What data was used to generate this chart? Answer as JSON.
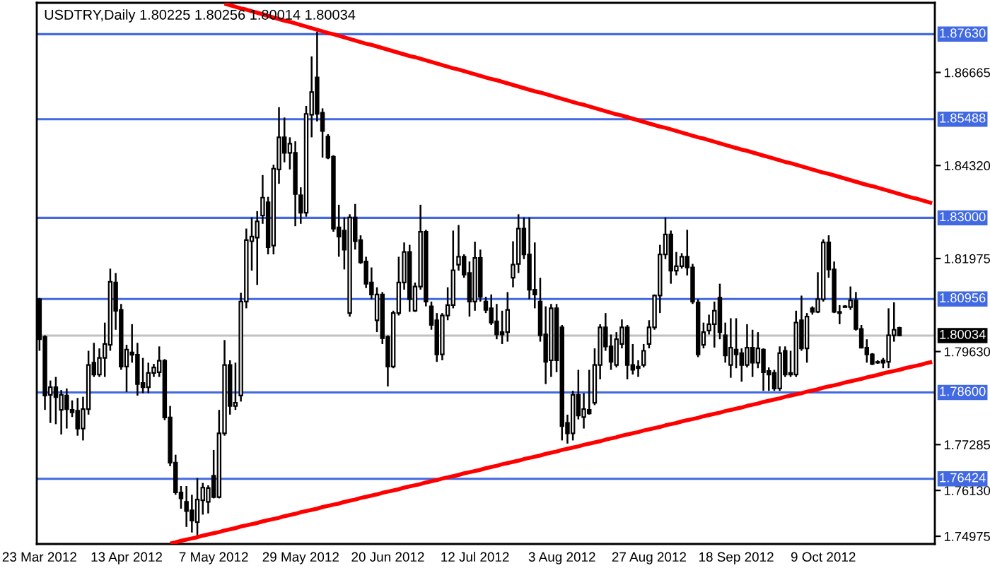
{
  "chart_data": {
    "type": "candlestick",
    "title": "USDTRY,Daily 1.80225 1.80256 1.80014 1.80034",
    "categories": [
      "23 Mar 2012",
      null,
      null,
      null,
      null,
      null,
      null,
      null,
      null,
      null,
      null,
      null,
      null,
      null,
      null,
      null,
      "13 Apr 2012",
      null,
      null,
      null,
      null,
      null,
      null,
      null,
      null,
      null,
      null,
      null,
      null,
      null,
      null,
      null,
      "7 May 2012",
      null,
      null,
      null,
      null,
      null,
      null,
      null,
      null,
      null,
      null,
      null,
      null,
      null,
      null,
      null,
      "29 May 2012",
      null,
      null,
      null,
      null,
      null,
      null,
      null,
      null,
      null,
      null,
      null,
      null,
      null,
      null,
      null,
      "20 Jun 2012",
      null,
      null,
      null,
      null,
      null,
      null,
      null,
      null,
      null,
      null,
      null,
      null,
      null,
      null,
      null,
      "12 Jul 2012",
      null,
      null,
      null,
      null,
      null,
      null,
      null,
      null,
      null,
      null,
      null,
      null,
      null,
      null,
      null,
      "3 Aug 2012",
      null,
      null,
      null,
      null,
      null,
      null,
      null,
      null,
      null,
      null,
      null,
      null,
      null,
      null,
      null,
      "27 Aug 2012",
      null,
      null,
      null,
      null,
      null,
      null,
      null,
      null,
      null,
      null,
      null,
      null,
      null,
      null,
      null,
      "18 Sep 2012",
      null,
      null,
      null,
      null,
      null,
      null,
      null,
      null,
      null,
      null,
      null,
      null,
      null,
      null,
      null,
      "9 Oct 2012",
      null,
      null,
      null,
      null,
      null,
      null,
      null,
      null,
      null,
      null,
      null,
      null,
      null,
      null,
      null,
      null,
      null,
      null,
      null,
      null
    ],
    "ohlc": [
      [
        1.8095,
        1.8098,
        1.7965,
        1.7994
      ],
      [
        1.8,
        1.8004,
        1.7816,
        1.7852
      ],
      [
        1.7854,
        1.789,
        1.7783,
        1.7873
      ],
      [
        1.7873,
        1.7899,
        1.778,
        1.7848
      ],
      [
        1.7816,
        1.7866,
        1.7754,
        1.7854
      ],
      [
        1.7852,
        1.787,
        1.7769,
        1.7818
      ],
      [
        1.7816,
        1.784,
        1.7798,
        1.781
      ],
      [
        1.7814,
        1.7846,
        1.7751,
        1.7769
      ],
      [
        1.7769,
        1.7849,
        1.7739,
        1.7818
      ],
      [
        1.7818,
        1.7965,
        1.7804,
        1.7929
      ],
      [
        1.7935,
        1.7985,
        1.7899,
        1.7905
      ],
      [
        1.7905,
        1.7971,
        1.7899,
        1.7947
      ],
      [
        1.7947,
        1.8036,
        1.7899,
        1.7982
      ],
      [
        1.798,
        1.8172,
        1.7965,
        1.8139
      ],
      [
        1.8137,
        1.8161,
        1.8018,
        1.8066
      ],
      [
        1.8068,
        1.8083,
        1.7917,
        1.7925
      ],
      [
        1.7925,
        1.798,
        1.7861,
        1.7968
      ],
      [
        1.7961,
        1.8032,
        1.7935,
        1.7955
      ],
      [
        1.7955,
        1.7985,
        1.7852,
        1.7881
      ],
      [
        1.7884,
        1.7947,
        1.7858,
        1.7873
      ],
      [
        1.7873,
        1.7935,
        1.7858,
        1.7909
      ],
      [
        1.7909,
        1.7932,
        1.7899,
        1.7923
      ],
      [
        1.7911,
        1.7976,
        1.7899,
        1.794
      ],
      [
        1.794,
        1.7944,
        1.779,
        1.7797
      ],
      [
        1.7797,
        1.7826,
        1.7674,
        1.7683
      ],
      [
        1.7683,
        1.7703,
        1.7602,
        1.7608
      ],
      [
        1.7608,
        1.7624,
        1.7567,
        1.7593
      ],
      [
        1.7584,
        1.7624,
        1.7521,
        1.7561
      ],
      [
        1.7563,
        1.7602,
        1.7507,
        1.7537
      ],
      [
        1.7533,
        1.7644,
        1.7495,
        1.759
      ],
      [
        1.7588,
        1.7632,
        1.7552,
        1.762
      ],
      [
        1.7584,
        1.7626,
        1.7555,
        1.7619
      ],
      [
        1.765,
        1.7715,
        1.7593,
        1.7596
      ],
      [
        1.7596,
        1.7816,
        1.7593,
        1.7757
      ],
      [
        1.7757,
        1.7992,
        1.7751,
        1.7929
      ],
      [
        1.7929,
        1.7941,
        1.7804,
        1.7826
      ],
      [
        1.7826,
        1.7935,
        1.7816,
        1.7834
      ],
      [
        1.7852,
        1.8111,
        1.7837,
        1.8089
      ],
      [
        1.8089,
        1.8273,
        1.8072,
        1.8244
      ],
      [
        1.8241,
        1.8301,
        1.8167,
        1.8253
      ],
      [
        1.825,
        1.8317,
        1.8131,
        1.8291
      ],
      [
        1.8306,
        1.8408,
        1.8285,
        1.8351
      ],
      [
        1.8339,
        1.8353,
        1.8208,
        1.8226
      ],
      [
        1.823,
        1.8434,
        1.8208,
        1.8424
      ],
      [
        1.8422,
        1.8579,
        1.8386,
        1.8503
      ],
      [
        1.8503,
        1.8553,
        1.844,
        1.8464
      ],
      [
        1.8464,
        1.8503,
        1.8422,
        1.8487
      ],
      [
        1.8464,
        1.8493,
        1.8279,
        1.836
      ],
      [
        1.8357,
        1.8377,
        1.8285,
        1.8313
      ],
      [
        1.8313,
        1.8582,
        1.8303,
        1.8562
      ],
      [
        1.856,
        1.8707,
        1.8503,
        1.8617
      ],
      [
        1.8654,
        1.8769,
        1.8543,
        1.8562
      ],
      [
        1.8565,
        1.8576,
        1.8452,
        1.8519
      ],
      [
        1.8505,
        1.8511,
        1.8448,
        1.8452
      ],
      [
        1.8454,
        1.8458,
        1.8265,
        1.8273
      ],
      [
        1.8276,
        1.8333,
        1.8202,
        1.8253
      ],
      [
        1.8268,
        1.8301,
        1.817,
        1.822
      ],
      [
        1.806,
        1.8309,
        1.8051,
        1.8301
      ],
      [
        1.8301,
        1.8335,
        1.822,
        1.8241
      ],
      [
        1.8244,
        1.8256,
        1.8184,
        1.8188
      ],
      [
        1.819,
        1.8202,
        1.8123,
        1.8134
      ],
      [
        1.8137,
        1.8175,
        1.8095,
        1.8107
      ],
      [
        1.8042,
        1.8125,
        1.8012,
        1.8107
      ],
      [
        1.8107,
        1.8113,
        1.7982,
        1.7997
      ],
      [
        1.8,
        1.8004,
        1.7875,
        1.7925
      ],
      [
        1.7925,
        1.8066,
        1.7921,
        1.806
      ],
      [
        1.806,
        1.8202,
        1.8054,
        1.8137
      ],
      [
        1.8137,
        1.8238,
        1.8119,
        1.8214
      ],
      [
        1.8214,
        1.8232,
        1.8063,
        1.8095
      ],
      [
        1.8066,
        1.8137,
        1.8063,
        1.8127
      ],
      [
        1.8127,
        1.8333,
        1.8119,
        1.8265
      ],
      [
        1.8265,
        1.827,
        1.8077,
        1.8089
      ],
      [
        1.8077,
        1.8089,
        1.8018,
        1.803
      ],
      [
        1.8042,
        1.806,
        1.7937,
        1.7956
      ],
      [
        1.7956,
        1.806,
        1.7941,
        1.8054
      ],
      [
        1.8054,
        1.8125,
        1.8042,
        1.808
      ],
      [
        1.808,
        1.8268,
        1.8072,
        1.8168
      ],
      [
        1.8182,
        1.8282,
        1.8167,
        1.8202
      ],
      [
        1.8202,
        1.8208,
        1.8149,
        1.8157
      ],
      [
        1.8161,
        1.819,
        1.8051,
        1.8089
      ],
      [
        1.8089,
        1.824,
        1.8066,
        1.8199
      ],
      [
        1.8199,
        1.822,
        1.8089,
        1.8101
      ],
      [
        1.8089,
        1.8101,
        1.806,
        1.8068
      ],
      [
        1.8072,
        1.8107,
        1.803,
        1.8036
      ],
      [
        1.8039,
        1.8083,
        1.7994,
        1.8006
      ],
      [
        1.8012,
        1.8066,
        1.7982,
        1.8006
      ],
      [
        1.8012,
        1.8113,
        1.7988,
        1.8068
      ],
      [
        1.8149,
        1.8241,
        1.8125,
        1.8182
      ],
      [
        1.8184,
        1.8309,
        1.8161,
        1.8273
      ],
      [
        1.8273,
        1.8301,
        1.8196,
        1.8208
      ],
      [
        1.8208,
        1.8301,
        1.8095,
        1.8119
      ],
      [
        1.8119,
        1.8238,
        1.8072,
        1.8107
      ],
      [
        1.8089,
        1.8149,
        1.7988,
        1.8004
      ],
      [
        1.8006,
        1.8077,
        1.7881,
        1.7937
      ],
      [
        1.7941,
        1.8083,
        1.7899,
        1.8072
      ],
      [
        1.8072,
        1.8083,
        1.7911,
        1.7941
      ],
      [
        1.8024,
        1.803,
        1.7739,
        1.7775
      ],
      [
        1.7783,
        1.7804,
        1.7731,
        1.7757
      ],
      [
        1.7757,
        1.7864,
        1.7739,
        1.7854
      ],
      [
        1.7854,
        1.7917,
        1.7792,
        1.7802
      ],
      [
        1.7798,
        1.7858,
        1.7769,
        1.7818
      ],
      [
        1.7816,
        1.7917,
        1.7804,
        1.7807
      ],
      [
        1.7834,
        1.7971,
        1.7828,
        1.7929
      ],
      [
        1.7929,
        1.8032,
        1.7893,
        1.8024
      ],
      [
        1.8024,
        1.806,
        1.7965,
        1.7976
      ],
      [
        1.7976,
        1.8006,
        1.7917,
        1.7937
      ],
      [
        1.7929,
        1.8012,
        1.7923,
        1.7994
      ],
      [
        1.7982,
        1.8044,
        1.7971,
        1.8024
      ],
      [
        1.8024,
        1.803,
        1.7893,
        1.7929
      ],
      [
        1.7929,
        1.7982,
        1.7905,
        1.7917
      ],
      [
        1.7925,
        1.7941,
        1.7899,
        1.7921
      ],
      [
        1.7929,
        1.7982,
        1.7923,
        1.7965
      ],
      [
        1.7982,
        1.8042,
        1.7971,
        1.8024
      ],
      [
        1.8024,
        1.8107,
        1.8018,
        1.8104
      ],
      [
        1.8104,
        1.8232,
        1.806,
        1.8208
      ],
      [
        1.8208,
        1.8301,
        1.8196,
        1.8258
      ],
      [
        1.8258,
        1.8268,
        1.8134,
        1.8167
      ],
      [
        1.8167,
        1.8214,
        1.8155,
        1.8178
      ],
      [
        1.8178,
        1.8211,
        1.8172,
        1.8202
      ],
      [
        1.8202,
        1.827,
        1.8155,
        1.8175
      ],
      [
        1.8175,
        1.8184,
        1.8083,
        1.8089
      ],
      [
        1.8087,
        1.8095,
        1.7949,
        1.7956
      ],
      [
        1.798,
        1.8036,
        1.7971,
        1.8012
      ],
      [
        1.8016,
        1.8056,
        1.8006,
        1.8032
      ],
      [
        1.8032,
        1.8089,
        1.7973,
        1.8066
      ],
      [
        1.8099,
        1.8134,
        1.7994,
        1.8012
      ],
      [
        1.8004,
        1.8036,
        1.7935,
        1.7953
      ],
      [
        1.7929,
        1.8047,
        1.7897,
        1.7973
      ],
      [
        1.7968,
        1.8047,
        1.7921,
        1.7956
      ],
      [
        1.7959,
        1.7971,
        1.7887,
        1.7929
      ],
      [
        1.7929,
        1.8032,
        1.7923,
        1.7973
      ],
      [
        1.7973,
        1.8018,
        1.7899,
        1.7935
      ],
      [
        1.7935,
        1.8012,
        1.7921,
        1.7971
      ],
      [
        1.7968,
        1.7971,
        1.7864,
        1.7911
      ],
      [
        1.7914,
        1.7923,
        1.7864,
        1.7905
      ],
      [
        1.7909,
        1.7917,
        1.7864,
        1.787
      ],
      [
        1.787,
        1.7976,
        1.7864,
        1.7959
      ],
      [
        1.7965,
        1.7976,
        1.7899,
        1.7905
      ],
      [
        1.7909,
        1.7965,
        1.7899,
        1.7905
      ],
      [
        1.7905,
        1.8066,
        1.7899,
        1.8036
      ],
      [
        1.8042,
        1.8104,
        1.7965,
        1.7971
      ],
      [
        1.7971,
        1.806,
        1.7935,
        1.8051
      ],
      [
        1.8072,
        1.8077,
        1.8056,
        1.8063
      ],
      [
        1.8063,
        1.8163,
        1.806,
        1.8095
      ],
      [
        1.8095,
        1.8246,
        1.8089,
        1.8238
      ],
      [
        1.8238,
        1.8256,
        1.8149,
        1.817
      ],
      [
        1.817,
        1.819,
        1.806,
        1.8063
      ],
      [
        1.8063,
        1.808,
        1.8032,
        1.806
      ],
      [
        1.8077,
        1.808,
        1.8075,
        1.8075
      ],
      [
        1.8075,
        1.8127,
        1.8068,
        1.8092
      ],
      [
        1.8092,
        1.8113,
        1.8016,
        1.802
      ],
      [
        1.802,
        1.803,
        1.7971,
        1.7973
      ],
      [
        1.7973,
        1.7994,
        1.7935,
        1.7956
      ],
      [
        1.7956,
        1.7959,
        1.7929,
        1.7932
      ],
      [
        1.7937,
        1.7941,
        1.7932,
        1.7935
      ],
      [
        1.7941,
        1.7947,
        1.7921,
        1.7935
      ],
      [
        1.7937,
        1.8072,
        1.7921,
        1.8004
      ],
      [
        1.8004,
        1.8087,
        1.7988,
        1.8018
      ],
      [
        1.80225,
        1.80256,
        1.80014,
        1.80034
      ],
      null,
      null,
      null,
      null,
      null,
      null
    ],
    "series": [
      {
        "type": "line",
        "color": "#ff0000",
        "values": [
          null,
          null,
          null,
          null,
          null,
          null,
          null,
          null,
          null,
          null,
          null,
          null,
          null,
          null,
          null,
          null,
          null,
          null,
          null,
          null,
          null,
          null,
          null,
          null,
          null,
          null,
          null,
          null,
          null,
          null,
          null,
          null,
          null,
          null,
          1.884,
          1.8836,
          1.8832,
          1.8828,
          1.8825,
          1.8821,
          1.8817,
          1.8813,
          1.8809,
          1.8805,
          1.8801,
          1.8797,
          1.8794,
          1.879,
          1.8786,
          1.8782,
          1.8778,
          1.8774,
          1.877,
          1.8766,
          1.8763,
          1.8759,
          1.8755,
          1.8751,
          1.8747,
          1.8743,
          1.8739,
          1.8736,
          1.8732,
          1.8728,
          1.8724,
          1.872,
          1.8716,
          1.8712,
          1.8708,
          1.8705,
          1.8701,
          1.8697,
          1.8693,
          1.8689,
          1.8685,
          1.8681,
          1.8677,
          1.8674,
          1.867,
          1.8666,
          1.8662,
          1.8658,
          1.8654,
          1.865,
          1.8647,
          1.8643,
          1.8639,
          1.8635,
          1.8631,
          1.8627,
          1.8623,
          1.8619,
          1.8616,
          1.8612,
          1.8608,
          1.8604,
          1.86,
          1.8596,
          1.8592,
          1.8588,
          1.8585,
          1.8581,
          1.8577,
          1.8573,
          1.8569,
          1.8565,
          1.8561,
          1.8558,
          1.8554,
          1.855,
          1.8546,
          1.8542,
          1.8538,
          1.8534,
          1.853,
          1.8527,
          1.8523,
          1.8519,
          1.8515,
          1.8511,
          1.8507,
          1.8503,
          1.85,
          1.8496,
          1.8492,
          1.8488,
          1.8484,
          1.848,
          1.8476,
          1.8472,
          1.8469,
          1.8465,
          1.8461,
          1.8457,
          1.8453,
          1.8449,
          1.8445,
          1.8441,
          1.8438,
          1.8434,
          1.843,
          1.8426,
          1.8422,
          1.8418,
          1.8414,
          1.8411,
          1.8407,
          1.8403,
          1.8399,
          1.8395,
          1.8391,
          1.8387,
          1.8383,
          1.838,
          1.8376,
          1.8372,
          1.8368,
          1.8364,
          1.836,
          1.8356,
          1.8352,
          1.8349,
          1.8345,
          1.8341,
          1.8337
        ]
      },
      {
        "type": "line",
        "color": "#ff0000",
        "values": [
          null,
          null,
          null,
          null,
          null,
          null,
          null,
          null,
          null,
          null,
          null,
          null,
          null,
          null,
          null,
          null,
          null,
          null,
          null,
          null,
          null,
          null,
          null,
          null,
          1.7479,
          1.7482,
          1.7486,
          1.7489,
          1.7492,
          1.7495,
          1.7499,
          1.7502,
          1.7505,
          1.7508,
          1.7512,
          1.7515,
          1.7518,
          1.7522,
          1.7525,
          1.7528,
          1.7531,
          1.7535,
          1.7538,
          1.7541,
          1.7544,
          1.7548,
          1.7551,
          1.7554,
          1.7558,
          1.7561,
          1.7564,
          1.7567,
          1.7571,
          1.7574,
          1.7577,
          1.758,
          1.7584,
          1.7587,
          1.759,
          1.7594,
          1.7597,
          1.76,
          1.7603,
          1.7607,
          1.761,
          1.7613,
          1.7616,
          1.762,
          1.7623,
          1.7626,
          1.7629,
          1.7633,
          1.7636,
          1.7639,
          1.7643,
          1.7646,
          1.7649,
          1.7652,
          1.7656,
          1.7659,
          1.7662,
          1.7665,
          1.7669,
          1.7672,
          1.7675,
          1.7679,
          1.7682,
          1.7685,
          1.7688,
          1.7692,
          1.7695,
          1.7698,
          1.7701,
          1.7705,
          1.7708,
          1.7711,
          1.7715,
          1.7718,
          1.7721,
          1.7724,
          1.7728,
          1.7731,
          1.7734,
          1.7737,
          1.7741,
          1.7744,
          1.7747,
          1.7751,
          1.7754,
          1.7757,
          1.776,
          1.7764,
          1.7767,
          1.777,
          1.7773,
          1.7777,
          1.778,
          1.7783,
          1.7787,
          1.779,
          1.7793,
          1.7796,
          1.78,
          1.7803,
          1.7806,
          1.7809,
          1.7813,
          1.7816,
          1.7819,
          1.7822,
          1.7826,
          1.7829,
          1.7832,
          1.7836,
          1.7839,
          1.7842,
          1.7845,
          1.7849,
          1.7852,
          1.7855,
          1.7858,
          1.7862,
          1.7865,
          1.7868,
          1.7872,
          1.7875,
          1.7878,
          1.7881,
          1.7885,
          1.7888,
          1.7891,
          1.7894,
          1.7898,
          1.7901,
          1.7904,
          1.7908,
          1.7911,
          1.7914,
          1.7917,
          1.7921,
          1.7924,
          1.7927,
          1.793,
          1.7934,
          1.7937
        ]
      }
    ],
    "ylim": [
      1.7478,
      1.8842
    ],
    "yticks": [
      1.74975,
      {
        "value": 1.7613,
        "label": "1.76130"
      },
      1.77285,
      {
        "value": 1.7963,
        "label": "1.79630"
      },
      1.81975,
      {
        "value": 1.8432,
        "label": "1.84320"
      },
      1.86665
    ],
    "ref_lines": [
      {
        "axis": "y",
        "value": 1.8763,
        "label": "1.87630",
        "color": "#4169e1"
      },
      {
        "axis": "y",
        "value": 1.85488,
        "label": "1.85488",
        "color": "#4169e1"
      },
      {
        "axis": "y",
        "value": 1.83,
        "label": "1.83000",
        "color": "#4169e1"
      },
      {
        "axis": "y",
        "value": 1.80956,
        "label": "1.80956",
        "color": "#4169e1"
      },
      {
        "axis": "y",
        "value": 1.786,
        "label": "1.78600",
        "color": "#4169e1"
      },
      {
        "axis": "y",
        "value": 1.76424,
        "label": "1.76424",
        "color": "#4169e1"
      },
      {
        "axis": "y",
        "value": 1.80034,
        "label": "1.80034",
        "color": "#c0c0c0"
      }
    ]
  }
}
